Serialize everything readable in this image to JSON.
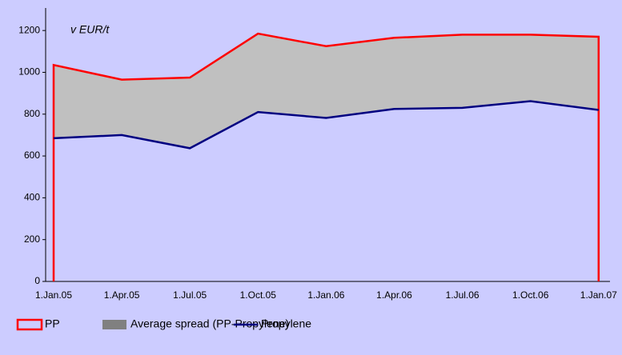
{
  "chart_data": {
    "type": "area",
    "annotation": "v EUR/t",
    "categories": [
      "1.Jan.05",
      "1.Apr.05",
      "1.Jul.05",
      "1.Oct.05",
      "1.Jan.06",
      "1.Apr.06",
      "1.Jul.06",
      "1.Oct.06",
      "1.Jan.07"
    ],
    "series": [
      {
        "name": "PP",
        "color": "#ff0000",
        "values": [
          1035,
          965,
          975,
          1185,
          1125,
          1165,
          1180,
          1180,
          1170
        ]
      },
      {
        "name": "Average spread (PP-Propylene)",
        "color": "#c0c0c0",
        "values": [
          350,
          265,
          338,
          375,
          343,
          340,
          350,
          318,
          350
        ]
      },
      {
        "name": "Propylene",
        "color": "#000080",
        "values": [
          685,
          700,
          637,
          810,
          782,
          825,
          830,
          862,
          820
        ]
      }
    ],
    "ylim": [
      0,
      1300
    ],
    "yticks": [
      0,
      200,
      400,
      600,
      800,
      1000,
      1200
    ]
  }
}
